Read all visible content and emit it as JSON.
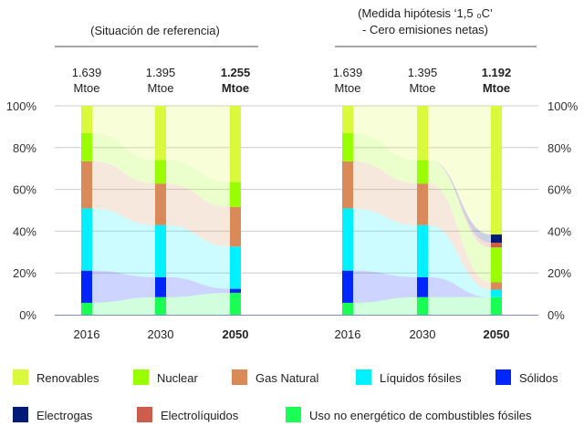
{
  "chart_data": [
    {
      "type": "bar",
      "title": "(Situación de referencia)",
      "categories": [
        "2016",
        "2030",
        "2050"
      ],
      "totals": [
        "1.639",
        "1.395",
        "1.255"
      ],
      "total_unit": "Mtoe",
      "ylim": [
        0,
        100
      ],
      "yticks": [
        "0%",
        "20%",
        "40%",
        "60%",
        "80%",
        "100%"
      ],
      "grid": true,
      "series": [
        {
          "name": "Uso no energético de combustibles fósiles",
          "values": [
            5.7,
            8.4,
            10.5
          ]
        },
        {
          "name": "Sólidos",
          "values": [
            15.4,
            9.6,
            1.9
          ]
        },
        {
          "name": "Líquidos fósiles",
          "values": [
            29.8,
            24.9,
            20.2
          ]
        },
        {
          "name": "Gas Natural",
          "values": [
            22.5,
            19.9,
            19.0
          ]
        },
        {
          "name": "Nuclear",
          "values": [
            13.5,
            11.3,
            11.9
          ]
        },
        {
          "name": "Electrolíquidos",
          "values": [
            0,
            0,
            0
          ]
        },
        {
          "name": "Electrogas",
          "values": [
            0,
            0,
            0
          ]
        },
        {
          "name": "Renovables",
          "values": [
            13.1,
            25.9,
            36.5
          ]
        }
      ]
    },
    {
      "type": "bar",
      "title": [
        "(Medida hipótesis ‘1,5 ₀C’",
        "- Cero emisiones netas)"
      ],
      "categories": [
        "2016",
        "2030",
        "2050"
      ],
      "totals": [
        "1.639",
        "1.395",
        "1.192"
      ],
      "total_unit": "Mtoe",
      "ylim": [
        0,
        100
      ],
      "yticks": [
        "0%",
        "20%",
        "40%",
        "60%",
        "80%",
        "100%"
      ],
      "grid": true,
      "series": [
        {
          "name": "Uso no energético de combustibles fósiles",
          "values": [
            5.7,
            8.4,
            8.4
          ]
        },
        {
          "name": "Sólidos",
          "values": [
            15.4,
            9.6,
            0
          ]
        },
        {
          "name": "Líquidos fósiles",
          "values": [
            29.8,
            24.9,
            3.6
          ]
        },
        {
          "name": "Gas Natural",
          "values": [
            22.5,
            19.9,
            3.5
          ]
        },
        {
          "name": "Nuclear",
          "values": [
            13.5,
            11.3,
            16.7
          ]
        },
        {
          "name": "Electrolíquidos",
          "values": [
            0,
            0,
            2.3
          ]
        },
        {
          "name": "Electrogas",
          "values": [
            0,
            0,
            3.9
          ]
        },
        {
          "name": "Renovables",
          "values": [
            13.1,
            25.9,
            61.6
          ]
        }
      ]
    }
  ],
  "colors": {
    "Renovables": "#dbf93c",
    "Nuclear": "#99ff00",
    "Gas Natural": "#d98a58",
    "Líquidos fósiles": "#00f0ff",
    "Sólidos": "#0026ff",
    "Electrogas": "#001a78",
    "Electrolíquidos": "#cc5c4c",
    "Uso no energético de combustibles fósiles": "#19ff55"
  },
  "legend": [
    "Renovables",
    "Nuclear",
    "Gas Natural",
    "Líquidos fósiles",
    "Sólidos",
    "Electrogas",
    "Electrolíquidos",
    "Uso no energético de combustibles fósiles"
  ]
}
